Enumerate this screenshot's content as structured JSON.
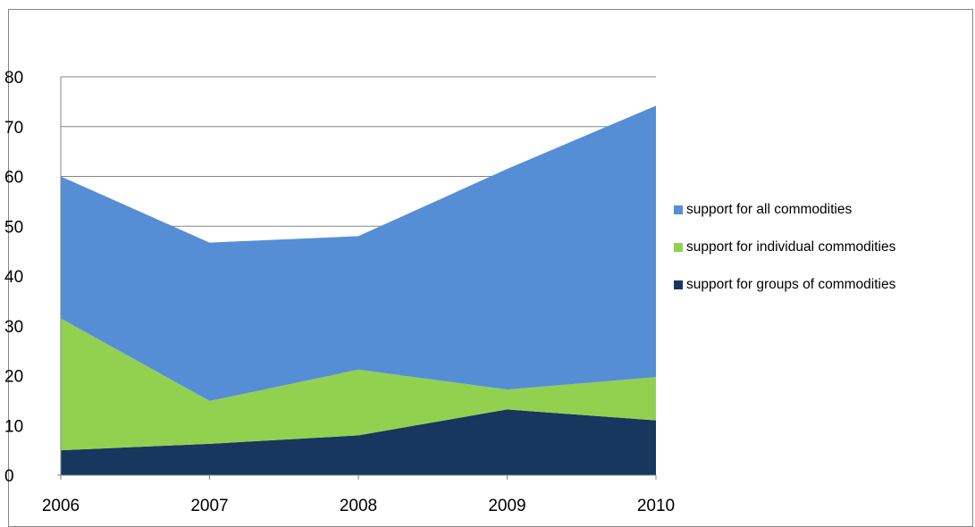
{
  "chart_data": {
    "type": "area",
    "stacked": true,
    "title": "",
    "xlabel": "",
    "ylabel": "",
    "x": [
      "2006",
      "2007",
      "2008",
      "2009",
      "2010"
    ],
    "ylim": [
      0,
      80
    ],
    "yticks": [
      "0",
      "10",
      "20",
      "30",
      "40",
      "50",
      "60",
      "70",
      "80"
    ],
    "grid": true,
    "legend_position": "right",
    "series": [
      {
        "name": "support for groups of commodities",
        "color": "#17375e",
        "values": [
          5,
          6.3,
          8,
          13.2,
          11
        ]
      },
      {
        "name": "support for individual commodities",
        "color": "#92d050",
        "values": [
          26.5,
          8.6,
          13.2,
          4,
          8.7
        ]
      },
      {
        "name": "support for all commodities",
        "color": "#558ed5",
        "values": [
          28.5,
          31.8,
          26.8,
          44.3,
          54.5
        ]
      }
    ]
  },
  "legend": {
    "items": [
      {
        "label": "support for all commodities",
        "color": "#558ed5"
      },
      {
        "label": "support for individual commodities",
        "color": "#92d050"
      },
      {
        "label": "support for groups of commodities",
        "color": "#17375e"
      }
    ]
  }
}
